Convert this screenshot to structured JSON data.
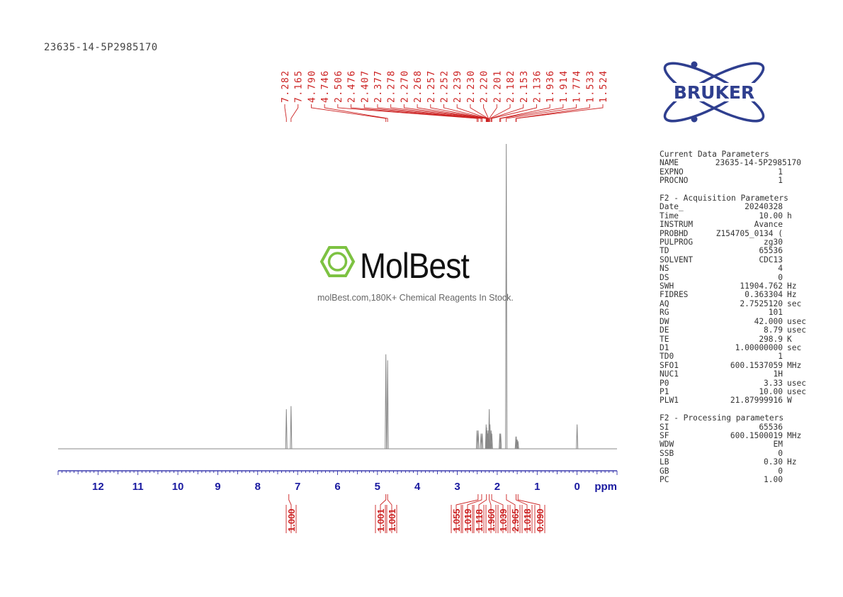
{
  "sample_id": "23635-14-5P2985170",
  "brand": {
    "name": "BRUKER",
    "color": "#2f3f8f"
  },
  "watermark": {
    "name": "MolBest",
    "tagline": "molBest.com,180K+ Chemical Reagents In Stock.",
    "color": "#7dc242"
  },
  "chart_data": {
    "type": "line",
    "title": "",
    "xlabel": "ppm",
    "xlim": [
      13.0,
      -1.0
    ],
    "x_reversed": true,
    "x_ticks": [
      "12",
      "11",
      "10",
      "9",
      "8",
      "7",
      "6",
      "5",
      "4",
      "3",
      "2",
      "1",
      "0"
    ],
    "x_tick_values": [
      12,
      11,
      10,
      9,
      8,
      7,
      6,
      5,
      4,
      3,
      2,
      1,
      0
    ],
    "axis_color": "#1a1aa0",
    "spectrum_color": "#888888",
    "annotation_color": "#cc2222",
    "peaks": [
      {
        "ppm": 7.282,
        "h": 0.13
      },
      {
        "ppm": 7.165,
        "h": 0.14
      },
      {
        "ppm": 4.79,
        "h": 0.31
      },
      {
        "ppm": 4.746,
        "h": 0.29
      },
      {
        "ppm": 2.506,
        "h": 0.06
      },
      {
        "ppm": 2.476,
        "h": 0.06
      },
      {
        "ppm": 2.407,
        "h": 0.05
      },
      {
        "ppm": 2.377,
        "h": 0.05
      },
      {
        "ppm": 2.278,
        "h": 0.08
      },
      {
        "ppm": 2.27,
        "h": 0.07
      },
      {
        "ppm": 2.268,
        "h": 0.07
      },
      {
        "ppm": 2.257,
        "h": 0.06
      },
      {
        "ppm": 2.252,
        "h": 0.06
      },
      {
        "ppm": 2.239,
        "h": 0.05
      },
      {
        "ppm": 2.23,
        "h": 0.05
      },
      {
        "ppm": 2.22,
        "h": 0.06
      },
      {
        "ppm": 2.201,
        "h": 0.13
      },
      {
        "ppm": 2.182,
        "h": 0.08
      },
      {
        "ppm": 2.153,
        "h": 0.06
      },
      {
        "ppm": 2.136,
        "h": 0.05
      },
      {
        "ppm": 1.936,
        "h": 0.05
      },
      {
        "ppm": 1.914,
        "h": 0.05
      },
      {
        "ppm": 1.774,
        "h": 1.0
      },
      {
        "ppm": 1.533,
        "h": 0.04
      },
      {
        "ppm": 1.524,
        "h": 0.04
      },
      {
        "ppm": 1.5,
        "h": 0.03
      },
      {
        "ppm": 1.48,
        "h": 0.025
      },
      {
        "ppm": 0.0,
        "h": 0.08
      }
    ],
    "peak_labels": [
      "7.282",
      "7.165",
      "4.790",
      "4.746",
      "2.506",
      "2.476",
      "2.407",
      "2.377",
      "2.278",
      "2.270",
      "2.268",
      "2.257",
      "2.252",
      "2.239",
      "2.230",
      "2.220",
      "2.201",
      "2.182",
      "2.153",
      "2.136",
      "1.936",
      "1.914",
      "1.774",
      "1.533",
      "1.524"
    ],
    "peak_label_ppm": [
      7.282,
      7.165,
      4.79,
      4.746,
      2.506,
      2.476,
      2.407,
      2.377,
      2.278,
      2.27,
      2.268,
      2.257,
      2.252,
      2.239,
      2.23,
      2.22,
      2.201,
      2.182,
      2.153,
      2.136,
      1.936,
      1.914,
      1.774,
      1.533,
      1.524
    ],
    "integrals": [
      {
        "label": "1.000",
        "ppm": 7.22
      },
      {
        "label": "1.001",
        "ppm": 4.79
      },
      {
        "label": "1.001",
        "ppm": 4.746
      },
      {
        "label": "1.055",
        "ppm": 2.48
      },
      {
        "label": "1.019",
        "ppm": 2.39
      },
      {
        "label": "1.118",
        "ppm": 2.27
      },
      {
        "label": "1.960",
        "ppm": 2.2
      },
      {
        "label": "1.039",
        "ppm": 2.14
      },
      {
        "label": "2.965",
        "ppm": 1.77
      },
      {
        "label": "1.018",
        "ppm": 1.53
      },
      {
        "label": "0.090",
        "ppm": 1.48
      }
    ]
  },
  "parameters": {
    "current": {
      "title": "Current Data Parameters",
      "rows": [
        {
          "k": "NAME",
          "v": "23635-14-5P2985170",
          "u": ""
        },
        {
          "k": "EXPNO",
          "v": "1",
          "u": ""
        },
        {
          "k": "PROCNO",
          "v": "1",
          "u": ""
        }
      ]
    },
    "acquisition": {
      "title": "F2 - Acquisition Parameters",
      "rows": [
        {
          "k": "Date_",
          "v": "20240328",
          "u": ""
        },
        {
          "k": "Time",
          "v": "10.00",
          "u": "h"
        },
        {
          "k": "INSTRUM",
          "v": "Avance",
          "u": ""
        },
        {
          "k": "PROBHD",
          "v": "Z154705_0134 (",
          "u": ""
        },
        {
          "k": "PULPROG",
          "v": "zg30",
          "u": ""
        },
        {
          "k": "TD",
          "v": "65536",
          "u": ""
        },
        {
          "k": "SOLVENT",
          "v": "CDC13",
          "u": ""
        },
        {
          "k": "NS",
          "v": "4",
          "u": ""
        },
        {
          "k": "DS",
          "v": "0",
          "u": ""
        },
        {
          "k": "SWH",
          "v": "11904.762",
          "u": "Hz"
        },
        {
          "k": "FIDRES",
          "v": "0.363304",
          "u": "Hz"
        },
        {
          "k": "AQ",
          "v": "2.7525120",
          "u": "sec"
        },
        {
          "k": "RG",
          "v": "101",
          "u": ""
        },
        {
          "k": "DW",
          "v": "42.000",
          "u": "usec"
        },
        {
          "k": "DE",
          "v": "8.79",
          "u": "usec"
        },
        {
          "k": "TE",
          "v": "298.9",
          "u": "K"
        },
        {
          "k": "D1",
          "v": "1.00000000",
          "u": "sec"
        },
        {
          "k": "TD0",
          "v": "1",
          "u": ""
        },
        {
          "k": "SFO1",
          "v": "600.1537059",
          "u": "MHz"
        },
        {
          "k": "NUC1",
          "v": "1H",
          "u": ""
        },
        {
          "k": "P0",
          "v": "3.33",
          "u": "usec"
        },
        {
          "k": "P1",
          "v": "10.00",
          "u": "usec"
        },
        {
          "k": "PLW1",
          "v": "21.87999916",
          "u": "W"
        }
      ]
    },
    "processing": {
      "title": "F2 - Processing parameters",
      "rows": [
        {
          "k": "SI",
          "v": "65536",
          "u": ""
        },
        {
          "k": "SF",
          "v": "600.1500019",
          "u": "MHz"
        },
        {
          "k": "WDW",
          "v": "EM",
          "u": ""
        },
        {
          "k": "SSB",
          "v": "0",
          "u": ""
        },
        {
          "k": "LB",
          "v": "0.30",
          "u": "Hz"
        },
        {
          "k": "GB",
          "v": "0",
          "u": ""
        },
        {
          "k": "PC",
          "v": "1.00",
          "u": ""
        }
      ]
    }
  }
}
